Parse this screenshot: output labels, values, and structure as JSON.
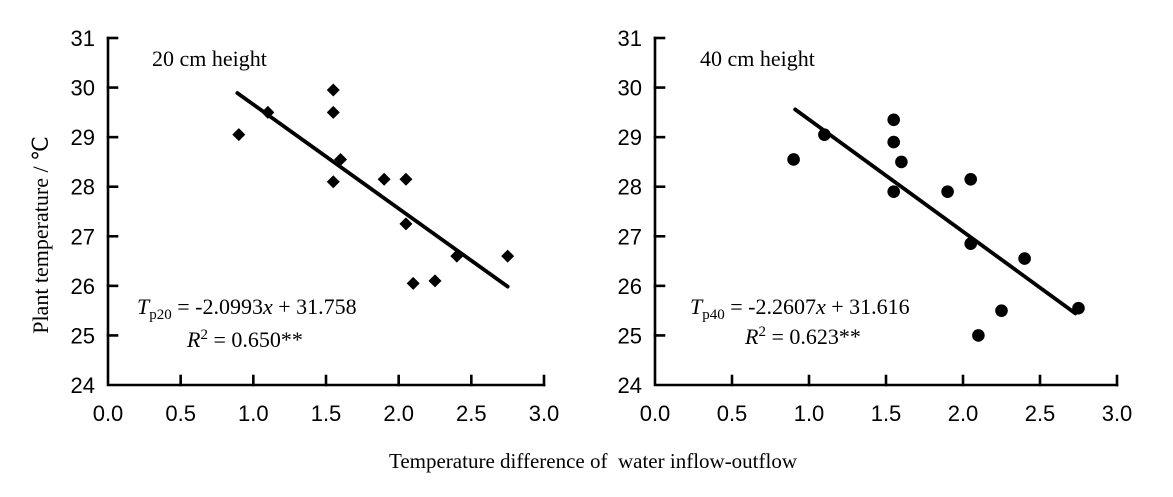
{
  "figure": {
    "x_axis_title": "Temperature difference of  water inflow-outflow",
    "y_axis_title": "Plant temperature / ℃",
    "background_color": "#ffffff",
    "ink_color": "#000000"
  },
  "chart_data": [
    {
      "type": "scatter",
      "title": "20 cm height",
      "marker": "diamond",
      "xlim": [
        0.0,
        3.0
      ],
      "ylim": [
        24,
        31
      ],
      "x_ticks": [
        "0.0",
        "0.5",
        "1.0",
        "1.5",
        "2.0",
        "2.5",
        "3.0"
      ],
      "y_ticks": [
        "24",
        "25",
        "26",
        "27",
        "28",
        "29",
        "30",
        "31"
      ],
      "points": [
        [
          0.9,
          29.05
        ],
        [
          1.1,
          29.5
        ],
        [
          1.55,
          29.95
        ],
        [
          1.55,
          29.5
        ],
        [
          1.6,
          28.55
        ],
        [
          1.55,
          28.1
        ],
        [
          1.9,
          28.15
        ],
        [
          2.05,
          28.15
        ],
        [
          2.05,
          27.25
        ],
        [
          2.1,
          26.05
        ],
        [
          2.25,
          26.1
        ],
        [
          2.4,
          26.6
        ],
        [
          2.75,
          26.6
        ]
      ],
      "trend_line": {
        "slope": -2.0993,
        "intercept": 31.758,
        "x_start": 0.89,
        "x_end": 2.75
      },
      "r2": 0.65,
      "equation": {
        "lhs": "T",
        "lhs_sub": "p20",
        "mid": " = -2.0993",
        "x_var": "x",
        "tail": " + 31.758"
      },
      "r_squared": {
        "lhs": "R",
        "sup": "2",
        "tail": " = 0.650**"
      }
    },
    {
      "type": "scatter",
      "title": "40 cm height",
      "marker": "circle",
      "xlim": [
        0.0,
        3.0
      ],
      "ylim": [
        24,
        31
      ],
      "x_ticks": [
        "0.0",
        "0.5",
        "1.0",
        "1.5",
        "2.0",
        "2.5",
        "3.0"
      ],
      "y_ticks": [
        "24",
        "25",
        "26",
        "27",
        "28",
        "29",
        "30",
        "31"
      ],
      "points": [
        [
          0.9,
          28.55
        ],
        [
          1.1,
          29.05
        ],
        [
          1.55,
          29.35
        ],
        [
          1.55,
          28.9
        ],
        [
          1.6,
          28.5
        ],
        [
          1.55,
          27.9
        ],
        [
          1.9,
          27.9
        ],
        [
          2.05,
          28.15
        ],
        [
          2.05,
          26.85
        ],
        [
          2.1,
          25.0
        ],
        [
          2.25,
          25.5
        ],
        [
          2.4,
          26.55
        ],
        [
          2.75,
          25.55
        ]
      ],
      "trend_line": {
        "slope": -2.2607,
        "intercept": 31.616,
        "x_start": 0.91,
        "x_end": 2.73
      },
      "r2": 0.623,
      "equation": {
        "lhs": "T",
        "lhs_sub": "p40",
        "mid": " = -2.2607",
        "x_var": "x",
        "tail": " + 31.616"
      },
      "r_squared": {
        "lhs": "R",
        "sup": "2",
        "tail": " = 0.623**"
      }
    }
  ]
}
